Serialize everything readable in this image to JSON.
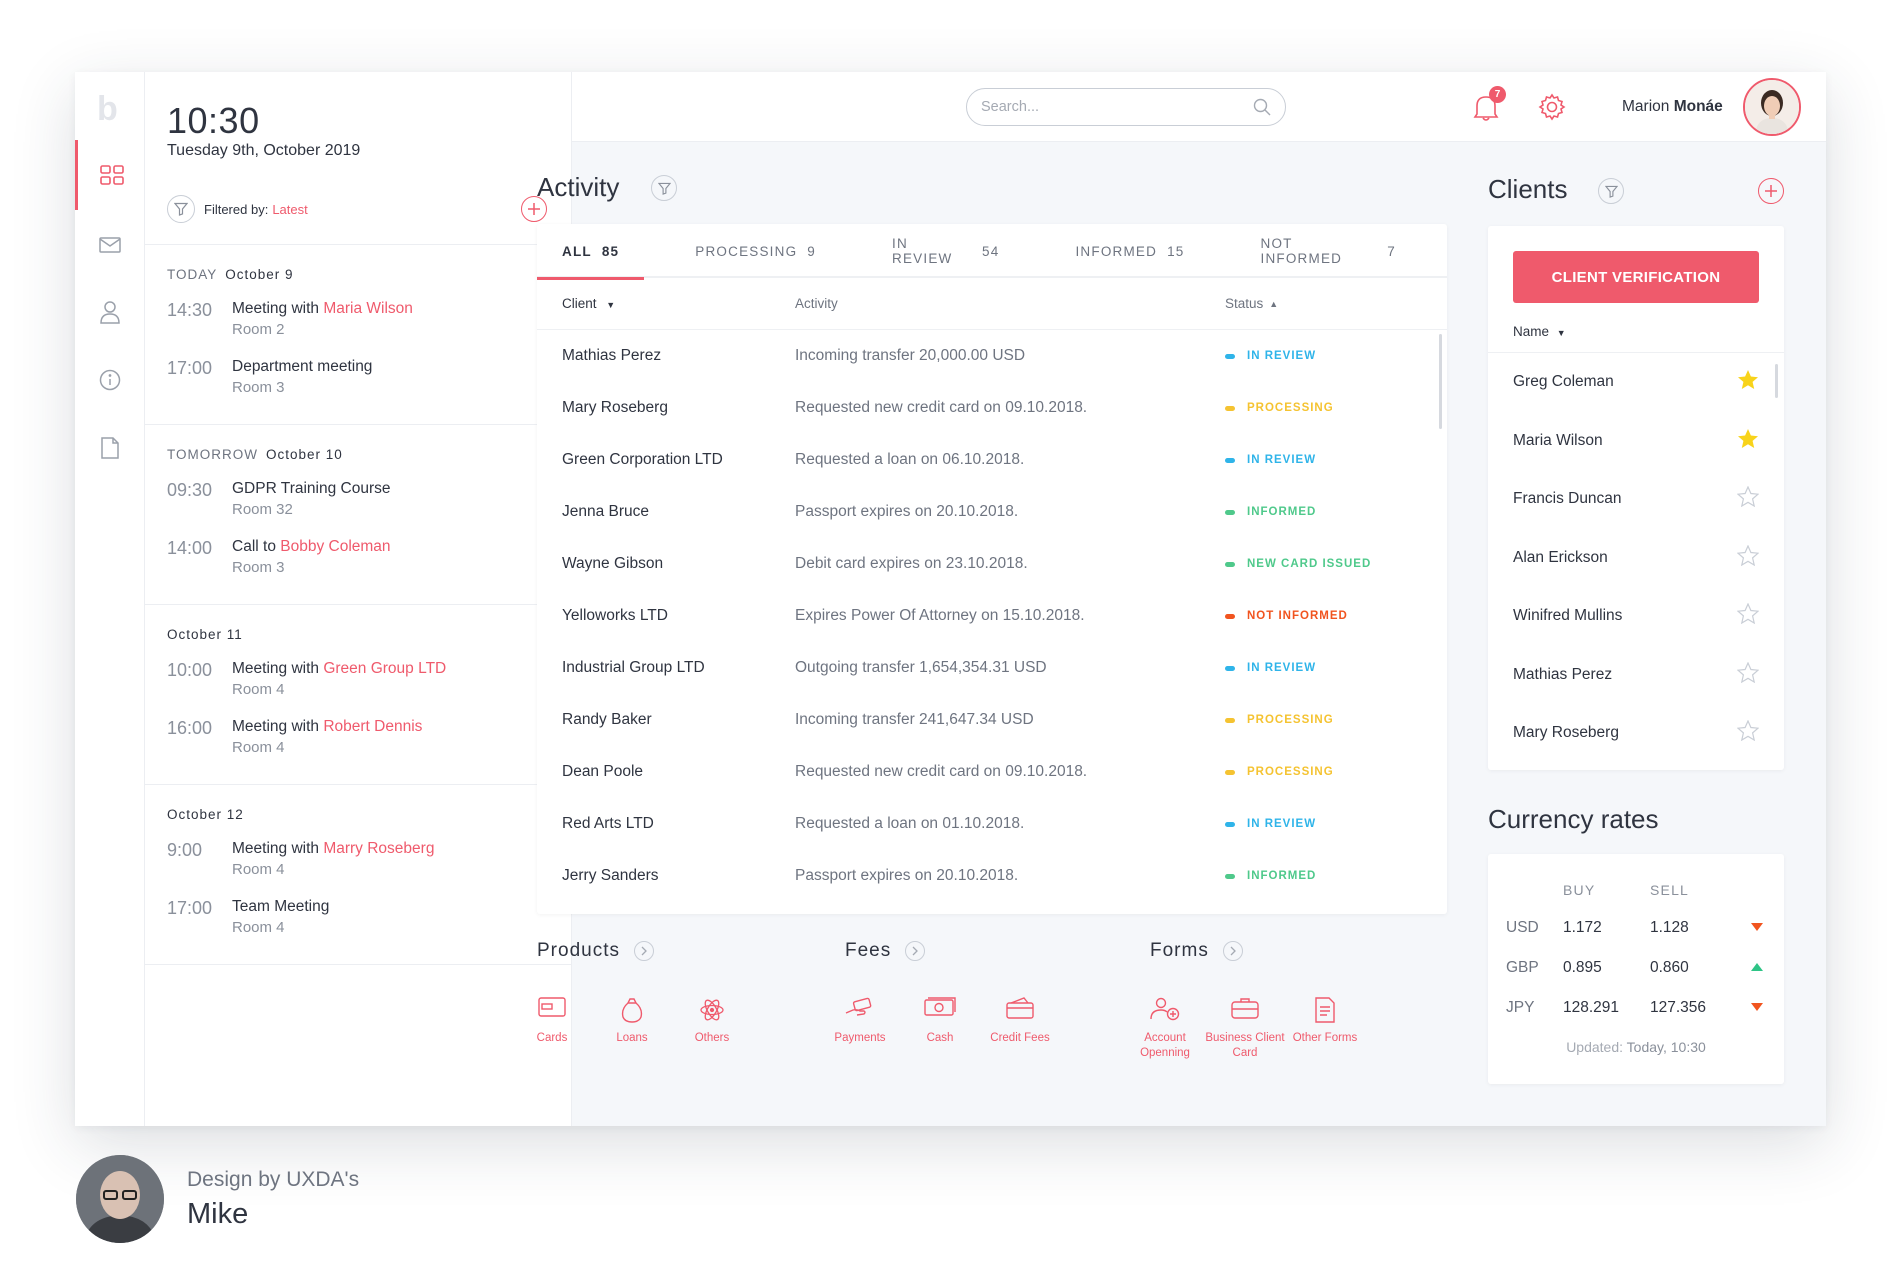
{
  "colors": {
    "accent": "#ef5a6c",
    "in_review": "#2fb4e9",
    "processing": "#f5c331",
    "informed": "#4fc98b",
    "not_informed": "#f1541f"
  },
  "rail": {
    "logo": "b",
    "icons": [
      "dashboard-icon",
      "mail-icon",
      "user-icon",
      "info-icon",
      "document-icon"
    ]
  },
  "calendar": {
    "time": "10:30",
    "date": "Tuesday  9th, October 2019",
    "filter_label": "Filtered by:",
    "filter_value": "Latest",
    "days": [
      {
        "prefix": "TODAY",
        "label": "October 9",
        "events": [
          {
            "time": "14:30",
            "title": "Meeting with",
            "link": "Maria Wilson",
            "room": "Room 2"
          },
          {
            "time": "17:00",
            "title": "Department meeting",
            "link": "",
            "room": "Room 3"
          }
        ]
      },
      {
        "prefix": "TOMORROW",
        "label": "October 10",
        "events": [
          {
            "time": "09:30",
            "title": "GDPR Training Course",
            "link": "",
            "room": "Room 32"
          },
          {
            "time": "14:00",
            "title": "Call to",
            "link": "Bobby Coleman",
            "room": "Room 3"
          }
        ]
      },
      {
        "prefix": "",
        "label": "October 11",
        "events": [
          {
            "time": "10:00",
            "title": "Meeting with",
            "link": "Green Group LTD",
            "room": "Room 4"
          },
          {
            "time": "16:00",
            "title": "Meeting with",
            "link": "Robert Dennis",
            "room": "Room 4"
          }
        ]
      },
      {
        "prefix": "",
        "label": "October 12",
        "events": [
          {
            "time": "9:00",
            "title": "Meeting with",
            "link": "Marry Roseberg",
            "room": "Room 4"
          },
          {
            "time": "17:00",
            "title": "Team Meeting",
            "link": "",
            "room": "Room 4"
          }
        ]
      }
    ]
  },
  "topbar": {
    "search_placeholder": "Search...",
    "notifications": "7",
    "user_first": "Marion",
    "user_last": "Monáe"
  },
  "activity": {
    "title": "Activity",
    "tabs": [
      {
        "label": "ALL",
        "count": "85"
      },
      {
        "label": "PROCESSING",
        "count": "9"
      },
      {
        "label": "IN REVIEW",
        "count": "54"
      },
      {
        "label": "INFORMED",
        "count": "15"
      },
      {
        "label": "NOT INFORMED",
        "count": "7"
      }
    ],
    "columns": {
      "client": "Client",
      "activity": "Activity",
      "status": "Status"
    },
    "rows": [
      {
        "client": "Mathias Perez",
        "activity": "Incoming transfer 20,000.00 USD",
        "status": "IN REVIEW",
        "kind": "in_review"
      },
      {
        "client": "Mary Roseberg",
        "activity": "Requested new credit card on 09.10.2018.",
        "status": "PROCESSING",
        "kind": "processing"
      },
      {
        "client": "Green Corporation LTD",
        "activity": "Requested a loan on 06.10.2018.",
        "status": "IN REVIEW",
        "kind": "in_review"
      },
      {
        "client": "Jenna Bruce",
        "activity": "Passport expires on 20.10.2018.",
        "status": "INFORMED",
        "kind": "informed"
      },
      {
        "client": "Wayne Gibson",
        "activity": "Debit card expires on 23.10.2018.",
        "status": "NEW CARD ISSUED",
        "kind": "informed"
      },
      {
        "client": "Yelloworks LTD",
        "activity": "Expires Power Of Attorney on 15.10.2018.",
        "status": "NOT INFORMED",
        "kind": "not_informed"
      },
      {
        "client": "Industrial Group LTD",
        "activity": "Outgoing transfer 1,654,354.31 USD",
        "status": "IN REVIEW",
        "kind": "in_review"
      },
      {
        "client": "Randy Baker",
        "activity": "Incoming transfer 241,647.34 USD",
        "status": "PROCESSING",
        "kind": "processing"
      },
      {
        "client": "Dean Poole",
        "activity": "Requested new credit card on 09.10.2018.",
        "status": "PROCESSING",
        "kind": "processing"
      },
      {
        "client": "Red Arts LTD",
        "activity": "Requested a loan on 01.10.2018.",
        "status": "IN REVIEW",
        "kind": "in_review"
      },
      {
        "client": "Jerry Sanders",
        "activity": "Passport expires on 20.10.2018.",
        "status": "INFORMED",
        "kind": "informed"
      }
    ]
  },
  "groups": [
    {
      "title": "Products",
      "items": [
        {
          "label": "Cards",
          "icon": "card-icon"
        },
        {
          "label": "Loans",
          "icon": "money-bag-icon"
        },
        {
          "label": "Others",
          "icon": "atom-icon"
        }
      ]
    },
    {
      "title": "Fees",
      "items": [
        {
          "label": "Payments",
          "icon": "payments-icon"
        },
        {
          "label": "Cash",
          "icon": "cash-icon"
        },
        {
          "label": "Credit Fees",
          "icon": "credit-card-icon"
        }
      ]
    },
    {
      "title": "Forms",
      "items": [
        {
          "label": "Account Openning",
          "icon": "add-user-icon"
        },
        {
          "label": "Business Client Card",
          "icon": "briefcase-icon"
        },
        {
          "label": "Other Forms",
          "icon": "form-icon"
        }
      ]
    }
  ],
  "clients": {
    "title": "Clients",
    "verify_label": "CLIENT VERIFICATION",
    "name_header": "Name",
    "list": [
      {
        "name": "Greg Coleman",
        "starred": true
      },
      {
        "name": "Maria Wilson",
        "starred": true
      },
      {
        "name": "Francis Duncan",
        "starred": false
      },
      {
        "name": "Alan Erickson",
        "starred": false
      },
      {
        "name": "Winifred Mullins",
        "starred": false
      },
      {
        "name": "Mathias Perez",
        "starred": false
      },
      {
        "name": "Mary Roseberg",
        "starred": false
      }
    ]
  },
  "currency": {
    "title": "Currency rates",
    "buy_label": "BUY",
    "sell_label": "SELL",
    "rows": [
      {
        "code": "USD",
        "buy": "1.172",
        "sell": "1.128",
        "trend": "down"
      },
      {
        "code": "GBP",
        "buy": "0.895",
        "sell": "0.860",
        "trend": "up"
      },
      {
        "code": "JPY",
        "buy": "128.291",
        "sell": "127.356",
        "trend": "down"
      }
    ],
    "updated_label": "Updated:",
    "updated_value": "Today, 10:30"
  },
  "credit": {
    "line1": "Design by UXDA's",
    "line2": "Mike"
  }
}
